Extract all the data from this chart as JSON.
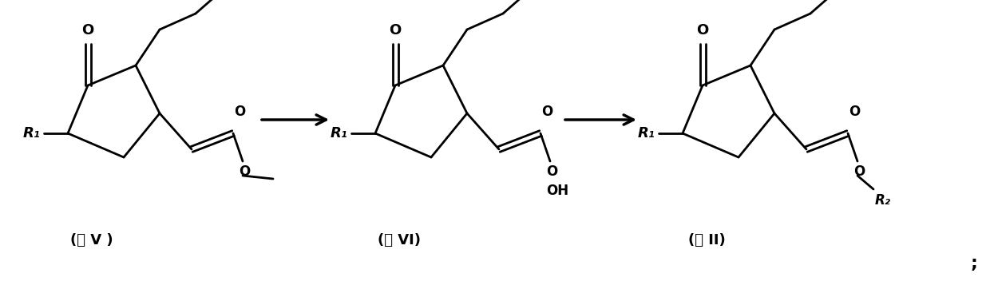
{
  "bg_color": "#ffffff",
  "fig_width": 12.4,
  "fig_height": 3.62,
  "dpi": 100,
  "label1": "(式 V )",
  "label2": "(式 VI)",
  "label3": "(式 II)",
  "semicolon": ";",
  "lw": 2.0
}
